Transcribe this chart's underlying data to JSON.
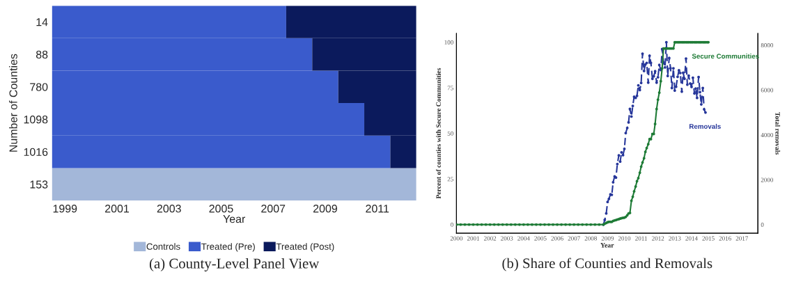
{
  "chart_data": [
    {
      "type": "bar",
      "orientation": "horizontal",
      "title": "(a) County-Level Panel View",
      "xlabel": "Year",
      "ylabel": "Number of Counties",
      "categories": [
        "14",
        "88",
        "780",
        "1098",
        "1016",
        "153"
      ],
      "xlim": [
        1998.5,
        2012.5
      ],
      "xticks": [
        1999,
        2001,
        2003,
        2005,
        2007,
        2009,
        2011
      ],
      "series": [
        {
          "name": "Controls",
          "color": "#a3b7d9",
          "values": [
            null,
            null,
            null,
            null,
            null,
            14
          ],
          "base": [
            null,
            null,
            null,
            null,
            null,
            1998.5
          ]
        },
        {
          "name": "Treated (Pre)",
          "color": "#3a5bcc",
          "values": [
            9,
            10,
            11,
            12,
            13,
            null
          ],
          "base": [
            1998.5,
            1998.5,
            1998.5,
            1998.5,
            1998.5,
            null
          ]
        },
        {
          "name": "Treated (Post)",
          "color": "#0b1a5c",
          "values": [
            5,
            4,
            3,
            2,
            1,
            null
          ],
          "base": [
            2007.5,
            2008.5,
            2009.5,
            2010.5,
            2011.5,
            null
          ]
        }
      ],
      "legend": "bottom"
    },
    {
      "type": "line",
      "title": "(b) Share of Counties and Removals",
      "xlabel": "Year",
      "ylabel": "Percent of counties with Secure Communities",
      "y2label": "Total removals",
      "xlim": [
        2000,
        2017.95
      ],
      "xticks": [
        2000,
        2001,
        2002,
        2003,
        2004,
        2005,
        2006,
        2007,
        2008,
        2009,
        2010,
        2011,
        2012,
        2013,
        2014,
        2015,
        2016,
        2017
      ],
      "ylim": [
        -4.7,
        104.8
      ],
      "yticks": [
        0,
        25,
        50,
        75,
        100
      ],
      "y2lim": [
        -380,
        8520
      ],
      "y2ticks": [
        0,
        2000,
        4000,
        6000,
        8000
      ],
      "legend": false,
      "grid": false,
      "series": [
        {
          "name": "Removals",
          "color": "#26369a",
          "axis": "y2",
          "marker": "circle",
          "line_style": "dashed",
          "x": [
            2008.75,
            2008.83,
            2008.92,
            2009,
            2009.08,
            2009.17,
            2009.25,
            2009.33,
            2009.42,
            2009.5,
            2009.58,
            2009.67,
            2009.75,
            2009.83,
            2009.92,
            2010,
            2010.08,
            2010.17,
            2010.25,
            2010.33,
            2010.42,
            2010.5,
            2010.58,
            2010.67,
            2010.75,
            2010.83,
            2010.92,
            2011,
            2011.08,
            2011.17,
            2011.25,
            2011.33,
            2011.42,
            2011.5,
            2011.58,
            2011.67,
            2011.75,
            2011.83,
            2011.92,
            2012,
            2012.08,
            2012.17,
            2012.25,
            2012.33,
            2012.42,
            2012.5,
            2012.58,
            2012.67,
            2012.75,
            2012.83,
            2012.92,
            2013,
            2013.08,
            2013.17,
            2013.25,
            2013.33,
            2013.42,
            2013.5,
            2013.58,
            2013.67,
            2013.75,
            2013.83,
            2013.92,
            2014,
            2014.08,
            2014.17,
            2014.25,
            2014.33,
            2014.42,
            2014.5,
            2014.58,
            2014.67,
            2014.75,
            2014.83
          ],
          "values": [
            0,
            210,
            500,
            1010,
            1150,
            1350,
            1330,
            1890,
            2150,
            2100,
            2700,
            3090,
            2810,
            3220,
            3100,
            3380,
            4080,
            4310,
            4560,
            5160,
            4820,
            5290,
            5700,
            5650,
            5740,
            6210,
            6000,
            6320,
            7620,
            6850,
            7140,
            7210,
            6330,
            7530,
            7210,
            6500,
            6610,
            6840,
            6330,
            6570,
            7120,
            6890,
            7830,
            7230,
            7010,
            8130,
            6630,
            7430,
            6970,
            6090,
            6970,
            5980,
            6150,
            6590,
            6880,
            6760,
            5930,
            6770,
            6500,
            7400,
            6240,
            6640,
            6290,
            6140,
            6550,
            5850,
            6070,
            5650,
            6580,
            5910,
            5360,
            6090,
            5140,
            5000
          ]
        },
        {
          "name": "Secure Communities",
          "color": "#1e7b36",
          "axis": "y",
          "marker": "circle",
          "line_style": "solid",
          "x": [
            2000,
            2000.25,
            2000.5,
            2000.75,
            2001,
            2001.25,
            2001.5,
            2001.75,
            2002,
            2002.25,
            2002.5,
            2002.75,
            2003,
            2003.25,
            2003.5,
            2003.75,
            2004,
            2004.25,
            2004.5,
            2004.75,
            2005,
            2005.25,
            2005.5,
            2005.75,
            2006,
            2006.25,
            2006.5,
            2006.75,
            2007,
            2007.25,
            2007.5,
            2007.75,
            2008,
            2008.25,
            2008.5,
            2008.75,
            2008.83,
            2008.92,
            2009,
            2009.08,
            2009.17,
            2009.25,
            2009.33,
            2009.42,
            2009.5,
            2009.58,
            2009.67,
            2009.75,
            2009.83,
            2009.92,
            2010,
            2010.08,
            2010.17,
            2010.25,
            2010.33,
            2010.42,
            2010.5,
            2010.58,
            2010.67,
            2010.75,
            2010.83,
            2010.92,
            2011,
            2011.08,
            2011.17,
            2011.25,
            2011.33,
            2011.42,
            2011.5,
            2011.58,
            2011.67,
            2011.75,
            2011.83,
            2011.92,
            2012,
            2012.08,
            2012.17,
            2012.25,
            2012.33,
            2012.42,
            2012.5,
            2012.58,
            2012.67,
            2012.75,
            2012.83,
            2012.92,
            2013,
            2013.08,
            2013.17,
            2013.25,
            2013.33,
            2013.42,
            2013.5,
            2013.58,
            2013.67,
            2013.75,
            2013.83,
            2013.92,
            2014,
            2014.08,
            2014.17,
            2014.25,
            2014.33,
            2014.42,
            2014.5,
            2014.58,
            2014.67,
            2014.75,
            2014.83,
            2014.92,
            2015
          ],
          "values": [
            0,
            0,
            0,
            0,
            0,
            0,
            0,
            0,
            0,
            0,
            0,
            0,
            0,
            0,
            0,
            0,
            0,
            0,
            0,
            0,
            0,
            0,
            0,
            0,
            0,
            0,
            0,
            0,
            0,
            0,
            0,
            0,
            0,
            0,
            0,
            0,
            0.5,
            0.9,
            1.3,
            1.5,
            1.5,
            1.5,
            2.0,
            2.3,
            2.5,
            2.8,
            3.0,
            3.3,
            3.5,
            3.7,
            3.8,
            4.2,
            5.1,
            6.1,
            6.4,
            13.1,
            15.3,
            18.2,
            20.9,
            23.8,
            25.5,
            28.5,
            31.8,
            34.1,
            36.4,
            39.9,
            42.0,
            44.1,
            46.9,
            46.9,
            49.7,
            49.7,
            55.2,
            63.4,
            68.5,
            72.4,
            78.7,
            85.7,
            96.6,
            96.6,
            96.6,
            96.6,
            96.6,
            96.6,
            96.6,
            96.6,
            100,
            100,
            100,
            100,
            100,
            100,
            100,
            100,
            100,
            100,
            100,
            100,
            100,
            100,
            100,
            100,
            100,
            100,
            100,
            100,
            100,
            100,
            100,
            100,
            100
          ]
        }
      ]
    }
  ]
}
